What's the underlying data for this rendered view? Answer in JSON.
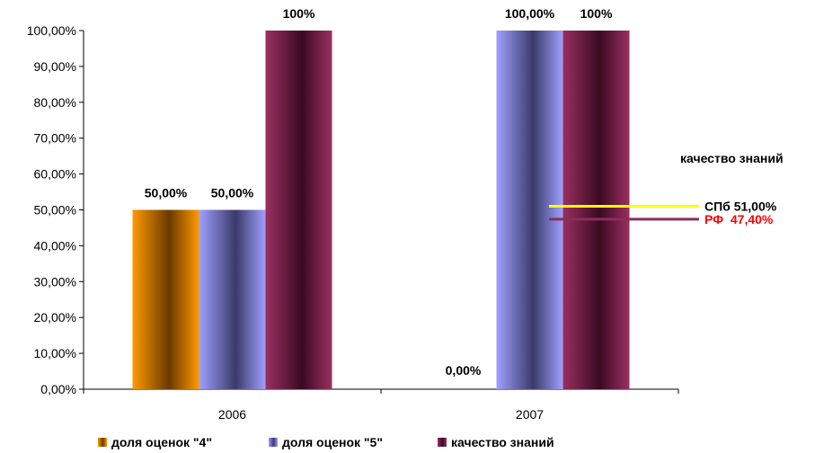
{
  "chart_data": {
    "type": "bar",
    "categories": [
      "2006",
      "2007"
    ],
    "ylim": [
      0,
      1
    ],
    "y_ticks": [
      "0,00%",
      "10,00%",
      "20,00%",
      "30,00%",
      "40,00%",
      "50,00%",
      "60,00%",
      "70,00%",
      "80,00%",
      "90,00%",
      "100,00%"
    ],
    "series": [
      {
        "name": "доля оценок \"4\"",
        "color": "#f08c00",
        "values": [
          0.5,
          0.0
        ],
        "labels": [
          "50,00%",
          "0,00%"
        ]
      },
      {
        "name": "доля оценок \"5\"",
        "color": "#9b9bff",
        "values": [
          0.5,
          1.0
        ],
        "labels": [
          "50,00%",
          "100,00%"
        ]
      },
      {
        "name": "качество знаний",
        "color": "#8b2d5a",
        "values": [
          1.0,
          1.0
        ],
        "labels": [
          "100%",
          "100%"
        ]
      }
    ],
    "reference_block_title": "качество знаний",
    "reference_lines": [
      {
        "label": "СПб 51,00%",
        "value": 0.51,
        "color": "#ffff00",
        "text_color": "#000000"
      },
      {
        "label": "РФ  47,40%",
        "value": 0.474,
        "color": "#8b2d5a",
        "text_color": "#ff0000"
      }
    ],
    "legend_position": "bottom"
  }
}
